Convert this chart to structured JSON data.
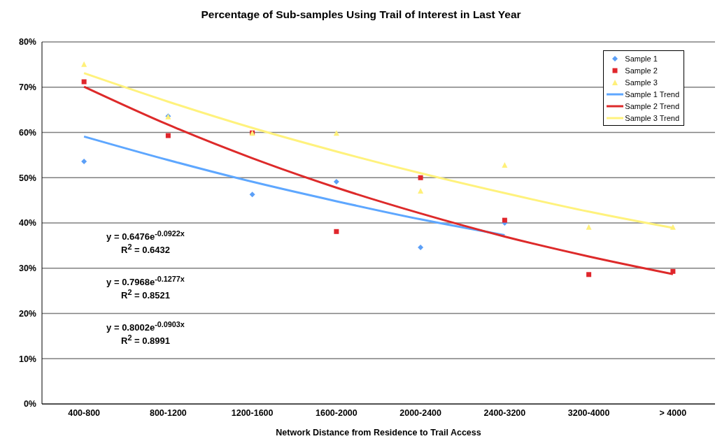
{
  "chart_data": {
    "type": "scatter",
    "title": "Percentage of Sub-samples Using Trail of Interest in Last Year",
    "xlabel": "Network Distance from Residence to Trail Access",
    "categories": [
      "400-800",
      "800-1200",
      "1200-1600",
      "1600-2000",
      "2000-2400",
      "2400-3200",
      "3200-4000",
      "> 4000"
    ],
    "series": [
      {
        "name": "Sample 1",
        "marker": "diamond",
        "color": "#5b9ff7",
        "values": [
          53.6,
          63.6,
          46.3,
          49.1,
          34.6,
          40.0,
          null,
          null
        ]
      },
      {
        "name": "Sample 2",
        "marker": "square",
        "color": "#e0262c",
        "values": [
          71.2,
          59.3,
          59.9,
          38.1,
          50.0,
          40.6,
          28.6,
          29.3
        ]
      },
      {
        "name": "Sample 3",
        "marker": "triangle",
        "color": "#fff07a",
        "values": [
          75.1,
          63.5,
          59.9,
          59.9,
          47.1,
          52.8,
          39.1,
          39.1
        ]
      },
      {
        "name": "Sample 1 Trend",
        "type": "line",
        "marker": "none",
        "line_style": "solid",
        "color": "#5ea7ff",
        "values": [
          59.1,
          53.9,
          49.1,
          44.8,
          40.8,
          37.3,
          null,
          null
        ]
      },
      {
        "name": "Sample 2 Trend",
        "type": "line",
        "marker": "none",
        "line_style": "solid",
        "color": "#dd2a2a",
        "values": [
          70.1,
          61.7,
          54.3,
          47.8,
          42.1,
          37.0,
          32.6,
          28.7
        ]
      },
      {
        "name": "Sample 3 Trend",
        "type": "line",
        "marker": "none",
        "line_style": "solid",
        "color": "#fff27d",
        "values": [
          73.1,
          66.8,
          61.0,
          55.8,
          51.0,
          46.6,
          42.5,
          38.9
        ]
      }
    ],
    "ylim": [
      0,
      80
    ],
    "yticks": [
      {
        "value": 0,
        "label": "0%"
      },
      {
        "value": 10,
        "label": "10%"
      },
      {
        "value": 20,
        "label": "20%"
      },
      {
        "value": 30,
        "label": "30%"
      },
      {
        "value": 40,
        "label": "40%"
      },
      {
        "value": 50,
        "label": "50%"
      },
      {
        "value": 60,
        "label": "60%"
      },
      {
        "value": 70,
        "label": "70%"
      },
      {
        "value": 80,
        "label": "80%"
      }
    ],
    "grid": "y",
    "legend": "top right",
    "annotations": [
      "y = 0.6476e$^{-0.0922x}$",
      "R$^{2}$ = 0.6432",
      "y = 0.7968e$^{-0.1277x}$",
      "R$^{2}$ = 0.8521",
      "y = 0.8002e$^{-0.0903x}$",
      "R$^{2}$ = 0.8991"
    ]
  }
}
